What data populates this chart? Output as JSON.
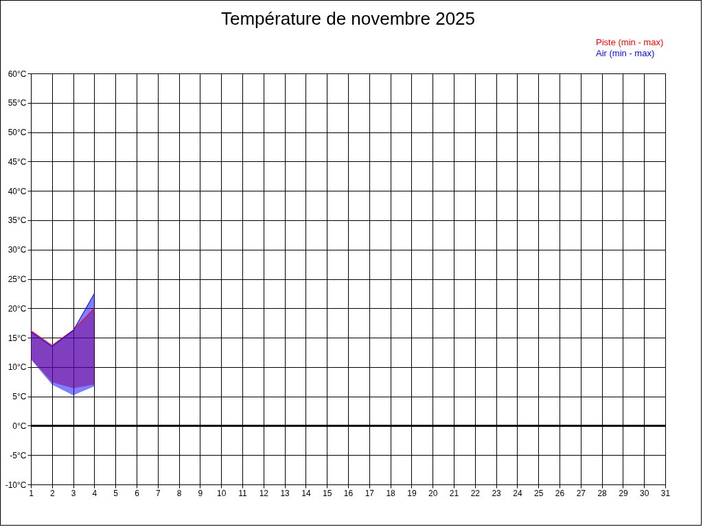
{
  "chart_data": {
    "type": "line",
    "title": "Température de novembre 2025",
    "x": [
      1,
      2,
      3,
      4
    ],
    "series": [
      {
        "name": "Piste (min - max)",
        "color": "#ff0000",
        "lower": [
          11.4,
          7.4,
          6.4,
          7.0
        ],
        "upper": [
          16.2,
          13.7,
          16.3,
          20.0
        ],
        "values": [
          16.2,
          13.7,
          16.3,
          20.0
        ]
      },
      {
        "name": "Air (min - max)",
        "color": "#0000ff",
        "lower": [
          11.3,
          7.0,
          5.2,
          6.7
        ],
        "upper": [
          16.0,
          13.5,
          16.2,
          22.5
        ],
        "values": [
          16.0,
          13.5,
          16.2,
          22.5
        ]
      }
    ],
    "xlim": [
      1,
      31
    ],
    "xticks": [
      1,
      2,
      3,
      4,
      5,
      6,
      7,
      8,
      9,
      10,
      11,
      12,
      13,
      14,
      15,
      16,
      17,
      18,
      19,
      20,
      21,
      22,
      23,
      24,
      25,
      26,
      27,
      28,
      29,
      30,
      31
    ],
    "ylim": [
      -10,
      60
    ],
    "yticks": [
      {
        "value": -10,
        "label": "-10°C"
      },
      {
        "value": -5,
        "label": "-5°C"
      },
      {
        "value": 0,
        "label": "0°C"
      },
      {
        "value": 5,
        "label": "5°C"
      },
      {
        "value": 10,
        "label": "10°C"
      },
      {
        "value": 15,
        "label": "15°C"
      },
      {
        "value": 20,
        "label": "20°C"
      },
      {
        "value": 25,
        "label": "25°C"
      },
      {
        "value": 30,
        "label": "30°C"
      },
      {
        "value": 35,
        "label": "35°C"
      },
      {
        "value": 40,
        "label": "40°C"
      },
      {
        "value": 45,
        "label": "45°C"
      },
      {
        "value": 50,
        "label": "50°C"
      },
      {
        "value": 55,
        "label": "55°C"
      },
      {
        "value": 60,
        "label": "60°C"
      }
    ],
    "ref_lines": [
      {
        "axis": "y",
        "value": 0,
        "color": "#000000"
      }
    ],
    "grid": true,
    "legend": "top right"
  }
}
